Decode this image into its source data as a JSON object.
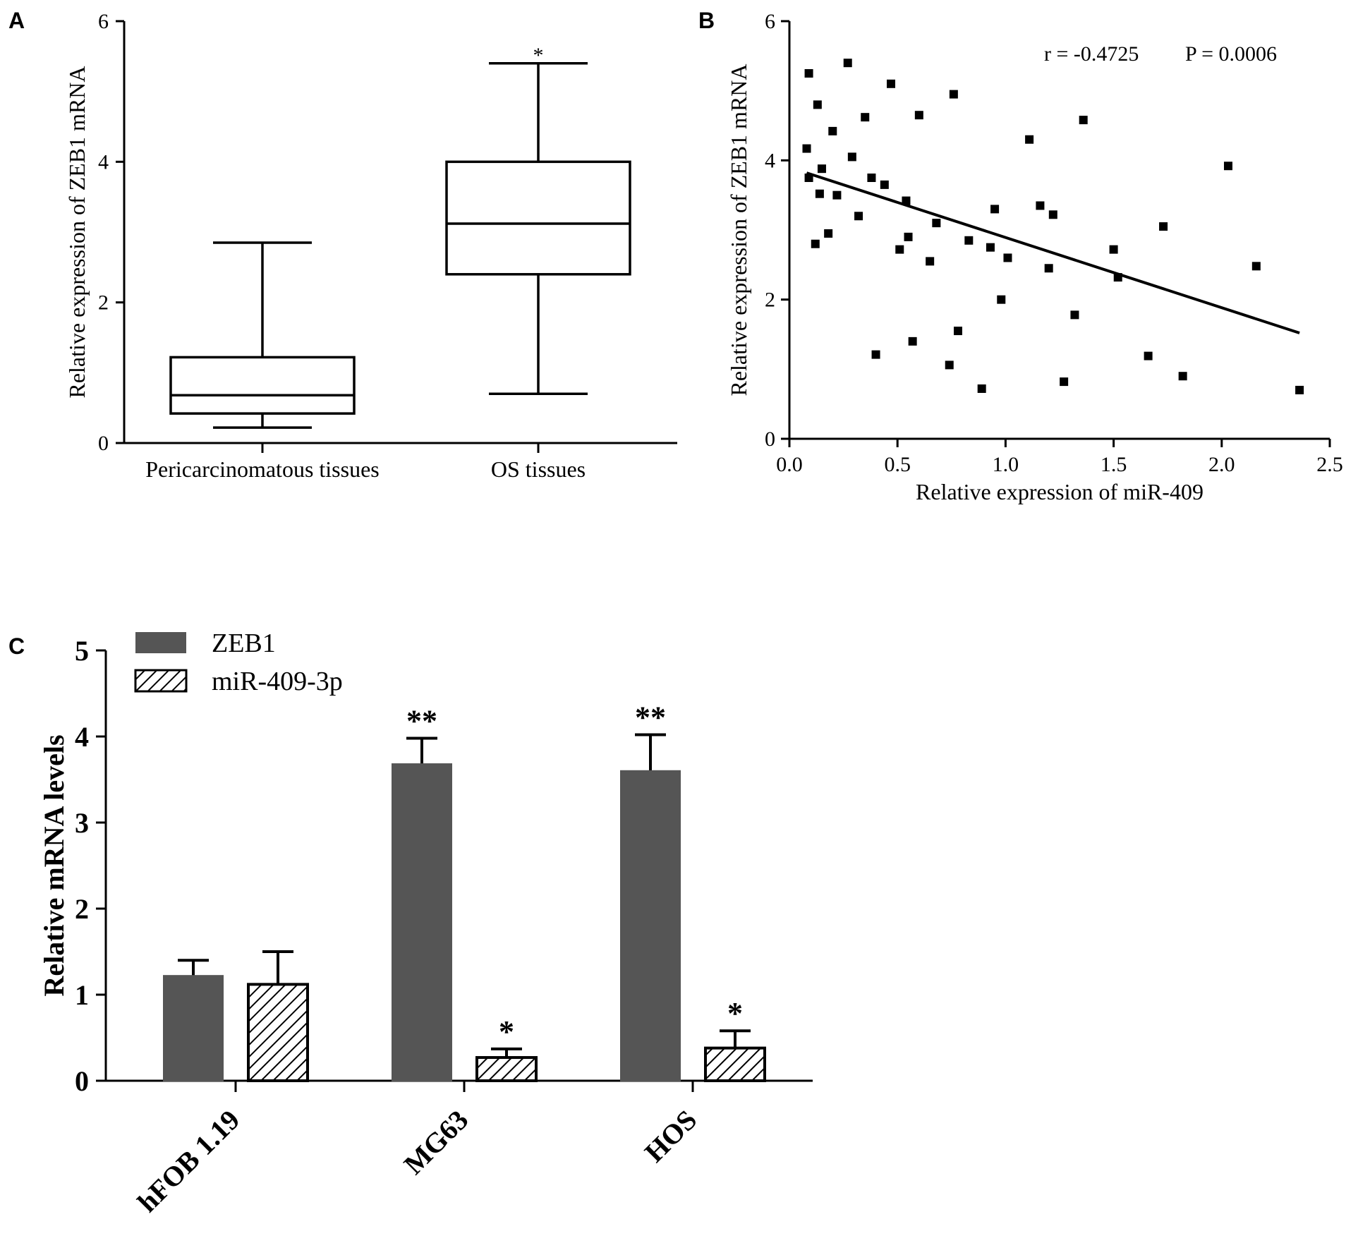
{
  "panels": {
    "a": "A",
    "b": "B",
    "c": "C"
  },
  "chart_data": [
    {
      "type": "box",
      "panel": "A",
      "ylabel": "Relative expression of ZEB1 mRNA",
      "ylim": [
        0,
        6
      ],
      "yticks": [
        0,
        2,
        4,
        6
      ],
      "categories": [
        "Pericarcinomatous tissues",
        "OS tissues"
      ],
      "boxes": [
        {
          "name": "Pericarcinomatous tissues",
          "min": 0.22,
          "q1": 0.42,
          "median": 0.68,
          "q3": 1.22,
          "max": 2.85,
          "annotation": ""
        },
        {
          "name": "OS tissues",
          "min": 0.7,
          "q1": 2.4,
          "median": 3.12,
          "q3": 4.0,
          "max": 5.4,
          "annotation": "*"
        }
      ]
    },
    {
      "type": "scatter",
      "panel": "B",
      "xlabel": "Relative expression of miR-409",
      "ylabel": "Relative expression of ZEB1 mRNA",
      "xlim": [
        0,
        2.5
      ],
      "ylim": [
        0,
        6
      ],
      "xticks": [
        "0.0",
        "0.5",
        "1.0",
        "1.5",
        "2.0",
        "2.5"
      ],
      "yticks": [
        0,
        2,
        4,
        6
      ],
      "stats": {
        "r": "r = -0.4725",
        "p": "P = 0.0006"
      },
      "trendline": {
        "x": [
          0.08,
          2.36
        ],
        "y": [
          3.82,
          1.52
        ]
      },
      "points": [
        [
          0.08,
          4.17
        ],
        [
          0.09,
          5.25
        ],
        [
          0.09,
          3.75
        ],
        [
          0.12,
          2.8
        ],
        [
          0.13,
          4.8
        ],
        [
          0.14,
          3.52
        ],
        [
          0.15,
          3.88
        ],
        [
          0.18,
          2.95
        ],
        [
          0.2,
          4.42
        ],
        [
          0.22,
          3.5
        ],
        [
          0.27,
          5.4
        ],
        [
          0.29,
          4.05
        ],
        [
          0.32,
          3.2
        ],
        [
          0.35,
          4.62
        ],
        [
          0.38,
          3.75
        ],
        [
          0.4,
          1.21
        ],
        [
          0.44,
          3.65
        ],
        [
          0.47,
          5.1
        ],
        [
          0.51,
          2.72
        ],
        [
          0.54,
          3.42
        ],
        [
          0.55,
          2.9
        ],
        [
          0.57,
          1.4
        ],
        [
          0.6,
          4.65
        ],
        [
          0.65,
          2.55
        ],
        [
          0.68,
          3.1
        ],
        [
          0.74,
          1.06
        ],
        [
          0.76,
          4.95
        ],
        [
          0.78,
          1.55
        ],
        [
          0.83,
          2.85
        ],
        [
          0.89,
          0.72
        ],
        [
          0.93,
          2.75
        ],
        [
          0.95,
          3.3
        ],
        [
          0.98,
          2.0
        ],
        [
          1.01,
          2.6
        ],
        [
          1.11,
          4.3
        ],
        [
          1.16,
          3.35
        ],
        [
          1.2,
          2.45
        ],
        [
          1.22,
          3.22
        ],
        [
          1.27,
          0.82
        ],
        [
          1.32,
          1.78
        ],
        [
          1.36,
          4.58
        ],
        [
          1.5,
          2.72
        ],
        [
          1.52,
          2.32
        ],
        [
          1.66,
          1.19
        ],
        [
          1.73,
          3.05
        ],
        [
          1.82,
          0.9
        ],
        [
          2.03,
          3.92
        ],
        [
          2.16,
          2.48
        ],
        [
          2.36,
          0.7
        ]
      ]
    },
    {
      "type": "bar",
      "panel": "C",
      "ylabel": "Relative mRNA levels",
      "ylim": [
        0,
        5
      ],
      "yticks": [
        0,
        1,
        2,
        3,
        4,
        5
      ],
      "categories": [
        "hFOB 1.19",
        "MG63",
        "HOS"
      ],
      "series": [
        {
          "name": "ZEB1",
          "values": [
            1.22,
            3.68,
            3.6
          ],
          "errors": [
            0.18,
            0.3,
            0.42
          ],
          "annotations": [
            "",
            "**",
            "**"
          ],
          "color": "#555555",
          "pattern": "solid"
        },
        {
          "name": "miR-409-3p",
          "values": [
            1.12,
            0.27,
            0.38
          ],
          "errors": [
            0.38,
            0.1,
            0.2
          ],
          "annotations": [
            "",
            "*",
            "*"
          ],
          "color": "#ffffff",
          "pattern": "hatched"
        }
      ]
    }
  ]
}
